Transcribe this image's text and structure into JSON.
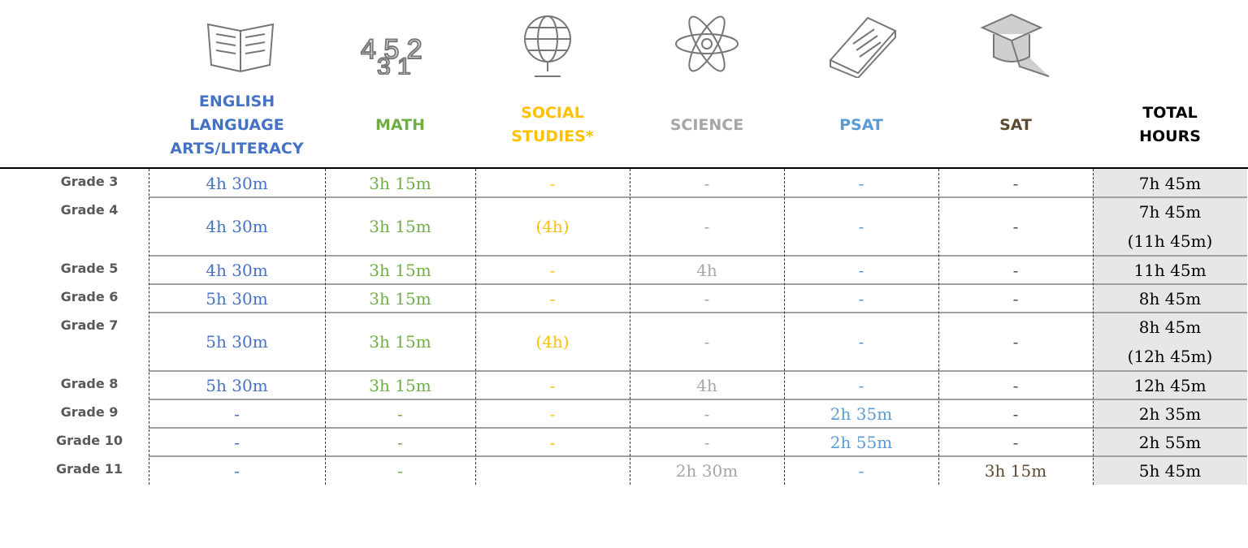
{
  "table": {
    "columns": [
      {
        "label": "ENGLISH LANGUAGE ARTS/LITERACY",
        "color": "#4472c4"
      },
      {
        "label": "MATH",
        "color": "#70ad47"
      },
      {
        "label": "SOCIAL STUDIES*",
        "color": "#ffc000"
      },
      {
        "label": "SCIENCE",
        "color": "#a6a6a6"
      },
      {
        "label": "PSAT",
        "color": "#5b9bd5"
      },
      {
        "label": "SAT",
        "color": "#5c4a32"
      },
      {
        "label": "TOTAL HOURS",
        "color": "#000000"
      }
    ],
    "rows": [
      {
        "label": "Grade 3",
        "cells": [
          "4h 30m",
          "3h 15m",
          "-",
          "-",
          "-",
          "-",
          [
            "7h 45m"
          ]
        ]
      },
      {
        "label": "Grade 4",
        "cells": [
          "4h 30m",
          "3h 15m",
          "(4h)",
          "-",
          "-",
          "-",
          [
            "7h 45m",
            "(11h 45m)"
          ]
        ]
      },
      {
        "label": "Grade 5",
        "cells": [
          "4h 30m",
          "3h 15m",
          "-",
          "4h",
          "-",
          "-",
          [
            "11h 45m"
          ]
        ]
      },
      {
        "label": "Grade 6",
        "cells": [
          "5h 30m",
          "3h 15m",
          "-",
          "-",
          "-",
          "-",
          [
            "8h 45m"
          ]
        ]
      },
      {
        "label": "Grade 7",
        "cells": [
          "5h 30m",
          "3h 15m",
          "(4h)",
          "-",
          "-",
          "-",
          [
            "8h 45m",
            "(12h 45m)"
          ]
        ]
      },
      {
        "label": "Grade 8",
        "cells": [
          "5h 30m",
          "3h 15m",
          "-",
          "4h",
          "-",
          "-",
          [
            "12h 45m"
          ]
        ]
      },
      {
        "label": "Grade 9",
        "cells": [
          "-",
          "-",
          "-",
          "-",
          "2h 35m",
          "-",
          [
            "2h 35m"
          ]
        ]
      },
      {
        "label": "Grade 10",
        "cells": [
          "-",
          "-",
          "-",
          "-",
          "2h 55m",
          "-",
          [
            "2h 55m"
          ]
        ]
      },
      {
        "label": "Grade 11",
        "cells": [
          "-",
          "-",
          "",
          "2h 30m",
          "-",
          "3h 15m",
          [
            "5h 45m"
          ]
        ]
      }
    ]
  }
}
